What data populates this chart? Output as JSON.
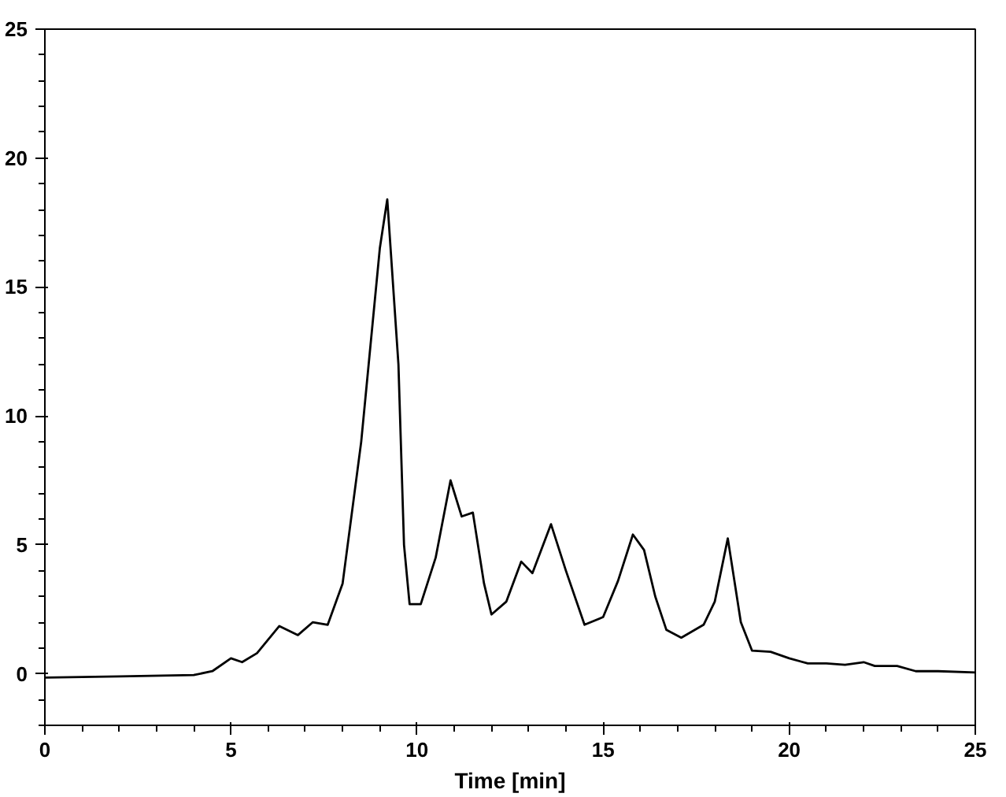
{
  "chart_data": {
    "type": "line",
    "xlabel": "Time [min]",
    "x": [
      0,
      2,
      4,
      4.5,
      5.0,
      5.3,
      5.7,
      6.3,
      6.8,
      7.2,
      7.6,
      8.0,
      8.5,
      9.0,
      9.2,
      9.5,
      9.65,
      9.8,
      10.1,
      10.5,
      10.9,
      11.2,
      11.5,
      11.8,
      12.0,
      12.4,
      12.8,
      13.1,
      13.6,
      14.0,
      14.5,
      15.0,
      15.4,
      15.8,
      16.1,
      16.4,
      16.7,
      17.1,
      17.7,
      18.0,
      18.35,
      18.7,
      19.0,
      19.5,
      20.0,
      20.5,
      21.0,
      21.5,
      22.0,
      22.3,
      22.9,
      23.4,
      24.0,
      25.0
    ],
    "series": [
      {
        "color": "#000000",
        "values": [
          -0.15,
          -0.1,
          -0.05,
          0.1,
          0.6,
          0.45,
          0.8,
          1.85,
          1.5,
          2.0,
          1.9,
          3.5,
          9,
          16.5,
          18.4,
          12,
          5,
          2.7,
          2.7,
          4.5,
          7.5,
          6.1,
          6.25,
          3.5,
          2.3,
          2.8,
          4.35,
          3.9,
          5.8,
          4.0,
          1.9,
          2.2,
          3.6,
          5.4,
          4.8,
          3.0,
          1.7,
          1.4,
          1.9,
          2.8,
          5.25,
          2.0,
          0.9,
          0.85,
          0.6,
          0.4,
          0.4,
          0.35,
          0.45,
          0.3,
          0.3,
          0.1,
          0.1,
          0.05
        ]
      }
    ],
    "xlim": [
      0,
      25
    ],
    "ylim": [
      -2,
      25
    ],
    "xticks": [
      0,
      5,
      10,
      15,
      20,
      25
    ],
    "yticks": [
      0,
      5,
      10,
      15,
      20,
      25
    ],
    "grid": false,
    "marker": "none",
    "line_style": "solid"
  }
}
